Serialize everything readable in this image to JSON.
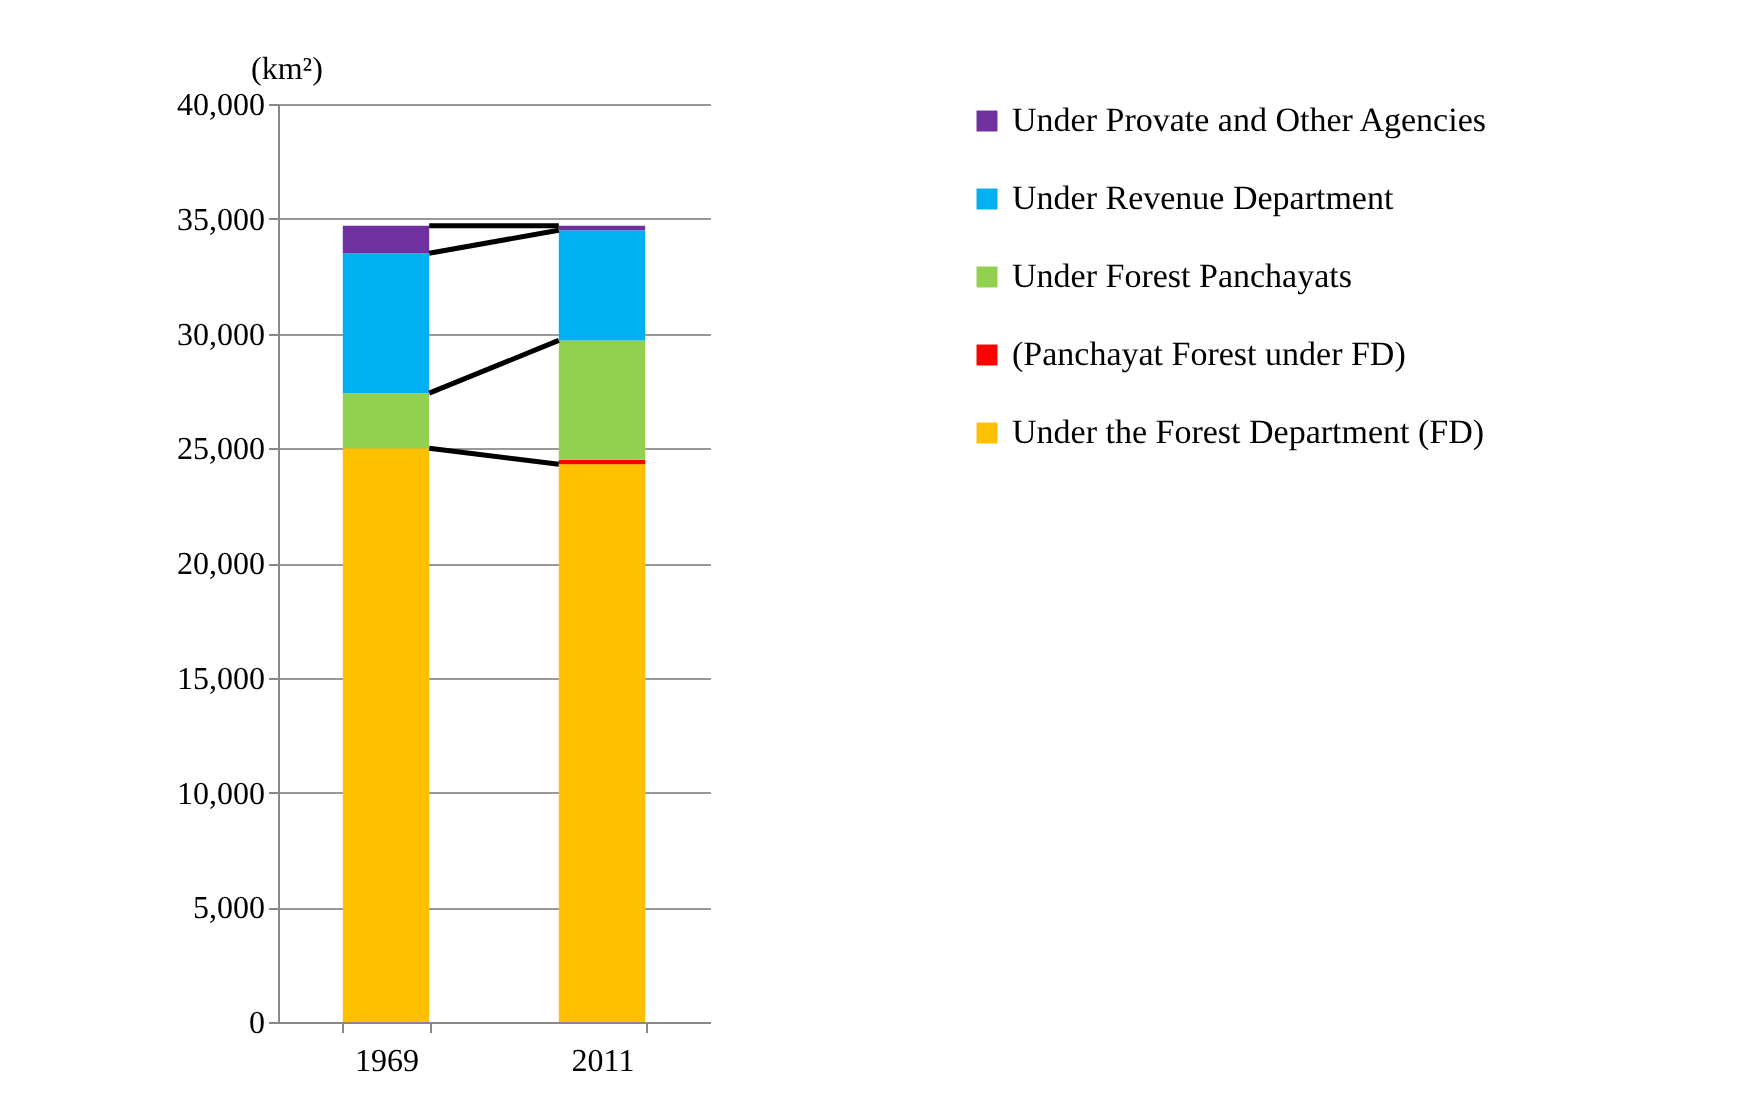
{
  "chart_data": {
    "type": "bar",
    "stacked": true,
    "ylabel": "(km²)",
    "categories": [
      "1969",
      "2011"
    ],
    "series": [
      {
        "name": "Under the Forest Department (FD)",
        "color": "#ffc000",
        "values": [
          25000,
          24300
        ]
      },
      {
        "name": "(Panchayat Forest under FD)",
        "color": "#ff0000",
        "values": [
          0,
          200
        ]
      },
      {
        "name": "Under Forest Panchayats",
        "color": "#92d050",
        "values": [
          2400,
          5200
        ]
      },
      {
        "name": "Under Revenue Department",
        "color": "#00b0f0",
        "values": [
          6100,
          4800
        ]
      },
      {
        "name": "Under Provate and Other Agencies",
        "color": "#7030a0",
        "values": [
          1200,
          200
        ]
      }
    ],
    "ylim": [
      0,
      40000
    ],
    "yticks": [
      0,
      {
        "value": 5000,
        "label": "5,000"
      },
      {
        "value": 10000,
        "label": "10,000"
      },
      {
        "value": 15000,
        "label": "15,000"
      },
      {
        "value": 20000,
        "label": "20,000"
      },
      {
        "value": 25000,
        "label": "25,000"
      },
      {
        "value": 30000,
        "label": "30,000"
      },
      {
        "value": 35000,
        "label": "35,000"
      },
      {
        "value": 40000,
        "label": "40,000"
      }
    ],
    "grid": "y",
    "legend": "right"
  }
}
